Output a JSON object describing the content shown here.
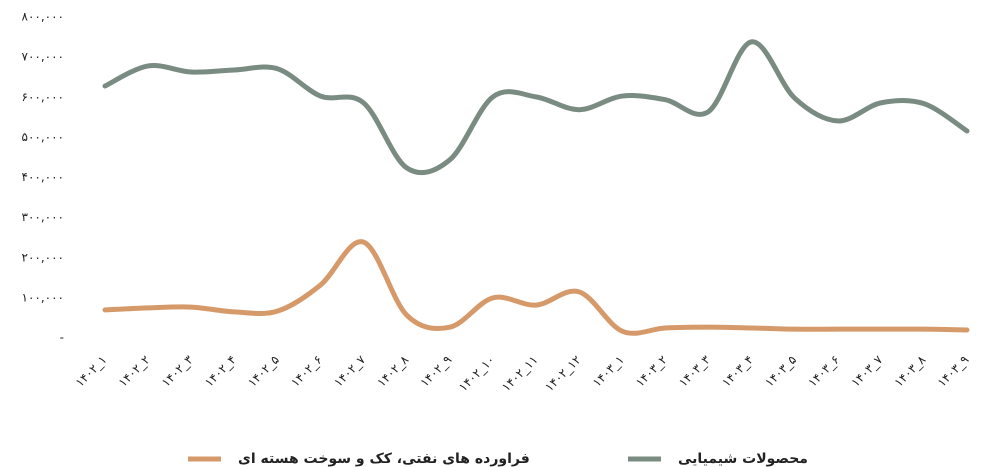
{
  "chart_data": {
    "type": "line",
    "categories": [
      "۱۴۰۲_۱",
      "۱۴۰۲_۲",
      "۱۴۰۲_۳",
      "۱۴۰۲_۴",
      "۱۴۰۲_۵",
      "۱۴۰۲_۶",
      "۱۴۰۲_۷",
      "۱۴۰۲_۸",
      "۱۴۰۲_۹",
      "۱۴۰۲_۱۰",
      "۱۴۰۲_۱۱",
      "۱۴۰۲_۱۲",
      "۱۴۰۳_۱",
      "۱۴۰۳_۲",
      "۱۴۰۳_۳",
      "۱۴۰۳_۴",
      "۱۴۰۳_۵",
      "۱۴۰۳_۶",
      "۱۴۰۳_۷",
      "۱۴۰۳_۸",
      "۱۴۰۳_۹"
    ],
    "series": [
      {
        "name": "فراورده های نفتی، کک و سوخت هسته ای",
        "color": "#d69a6a",
        "values": [
          70000,
          75000,
          77000,
          65000,
          67000,
          132000,
          239000,
          57000,
          27000,
          100000,
          82000,
          115000,
          17000,
          25000,
          27000,
          25000,
          22000,
          22000,
          22000,
          22000,
          20000
        ]
      },
      {
        "name": "محصولات شیمیایی",
        "color": "#7a8b82",
        "values": [
          628000,
          678000,
          663000,
          668000,
          671000,
          603000,
          586000,
          424000,
          444000,
          601000,
          601000,
          569000,
          603000,
          594000,
          564000,
          738000,
          598000,
          541000,
          586000,
          584000,
          516000
        ]
      }
    ],
    "ylim": [
      0,
      800000
    ],
    "yticks": [
      {
        "value": 0,
        "label": "-"
      },
      {
        "value": 100000,
        "label": "۱۰۰,۰۰۰"
      },
      {
        "value": 200000,
        "label": "۲۰۰,۰۰۰"
      },
      {
        "value": 300000,
        "label": "۳۰۰,۰۰۰"
      },
      {
        "value": 400000,
        "label": "۴۰۰,۰۰۰"
      },
      {
        "value": 500000,
        "label": "۵۰۰,۰۰۰"
      },
      {
        "value": 600000,
        "label": "۶۰۰,۰۰۰"
      },
      {
        "value": 700000,
        "label": "۷۰۰,۰۰۰"
      },
      {
        "value": 800000,
        "label": "۸۰۰,۰۰۰"
      }
    ],
    "grid": false,
    "legend": "bottom"
  }
}
